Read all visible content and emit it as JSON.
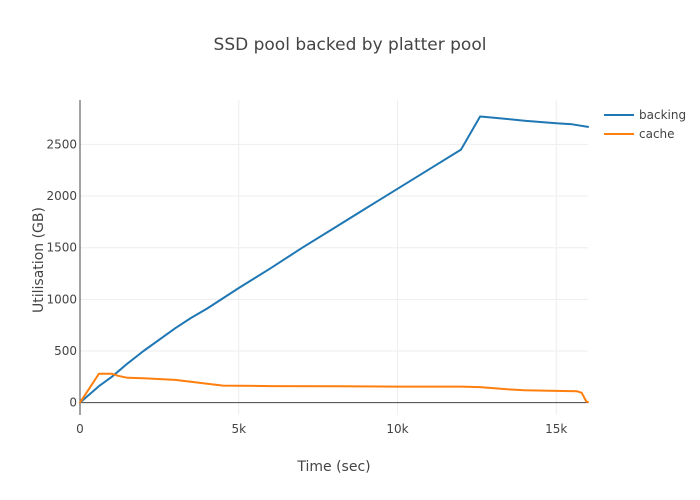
{
  "chart_data": {
    "type": "line",
    "title": "SSD pool backed by platter pool",
    "xlabel": "Time (sec)",
    "ylabel": "Utilisation (GB)",
    "xlim": [
      0,
      16000
    ],
    "ylim": [
      -120,
      2930
    ],
    "x_ticks": [
      {
        "value": 0,
        "label": "0"
      },
      {
        "value": 5000,
        "label": "5k"
      },
      {
        "value": 10000,
        "label": "10k"
      },
      {
        "value": 15000,
        "label": "15k"
      }
    ],
    "y_ticks": [
      {
        "value": 0,
        "label": "0"
      },
      {
        "value": 500,
        "label": "500"
      },
      {
        "value": 1000,
        "label": "1000"
      },
      {
        "value": 1500,
        "label": "1500"
      },
      {
        "value": 2000,
        "label": "2000"
      },
      {
        "value": 2500,
        "label": "2500"
      }
    ],
    "grid": true,
    "legend_position": "top-right",
    "series": [
      {
        "name": "backing",
        "color": "#1f77b4",
        "x": [
          0,
          600,
          1000,
          1500,
          2000,
          3000,
          3500,
          4000,
          5000,
          6000,
          7000,
          8000,
          9000,
          10000,
          11000,
          12000,
          12600,
          13000,
          13500,
          14000,
          15000,
          15500,
          16000
        ],
        "y": [
          0,
          160,
          250,
          380,
          500,
          720,
          820,
          910,
          1110,
          1300,
          1500,
          1690,
          1880,
          2070,
          2260,
          2450,
          2770,
          2760,
          2745,
          2730,
          2705,
          2695,
          2670
        ]
      },
      {
        "name": "cache",
        "color": "#ff7f0e",
        "x": [
          0,
          600,
          1000,
          1200,
          1500,
          2000,
          3000,
          4500,
          6000,
          8000,
          10000,
          12000,
          12600,
          13000,
          13500,
          14000,
          15000,
          15650,
          15800,
          15950,
          16000
        ],
        "y": [
          0,
          280,
          280,
          260,
          240,
          235,
          220,
          165,
          160,
          158,
          155,
          155,
          150,
          140,
          128,
          120,
          113,
          110,
          95,
          10,
          5
        ]
      }
    ]
  }
}
